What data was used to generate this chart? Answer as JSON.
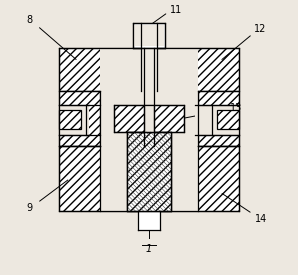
{
  "fig_color": "#ede8e0",
  "line_color": "#000000",
  "lw": 0.9,
  "hatch": "////",
  "fs": 7.0
}
